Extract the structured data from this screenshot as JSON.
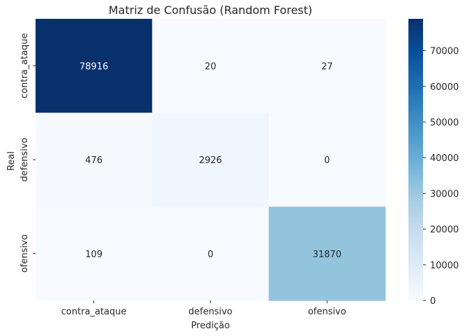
{
  "chart_data": {
    "type": "heatmap",
    "title": "Matriz de Confusão (Random Forest)",
    "xlabel": "Predição",
    "ylabel": "Real",
    "x_categories": [
      "contra_ataque",
      "defensivo",
      "ofensivo"
    ],
    "y_categories": [
      "contra_ataque",
      "defensivo",
      "ofensivo"
    ],
    "values": [
      [
        78916,
        20,
        27
      ],
      [
        476,
        2926,
        0
      ],
      [
        109,
        0,
        31870
      ]
    ],
    "colormap": "Blues",
    "colorbar": {
      "min": 0,
      "max": 78916,
      "ticks": [
        0,
        10000,
        20000,
        30000,
        40000,
        50000,
        60000,
        70000
      ]
    }
  }
}
